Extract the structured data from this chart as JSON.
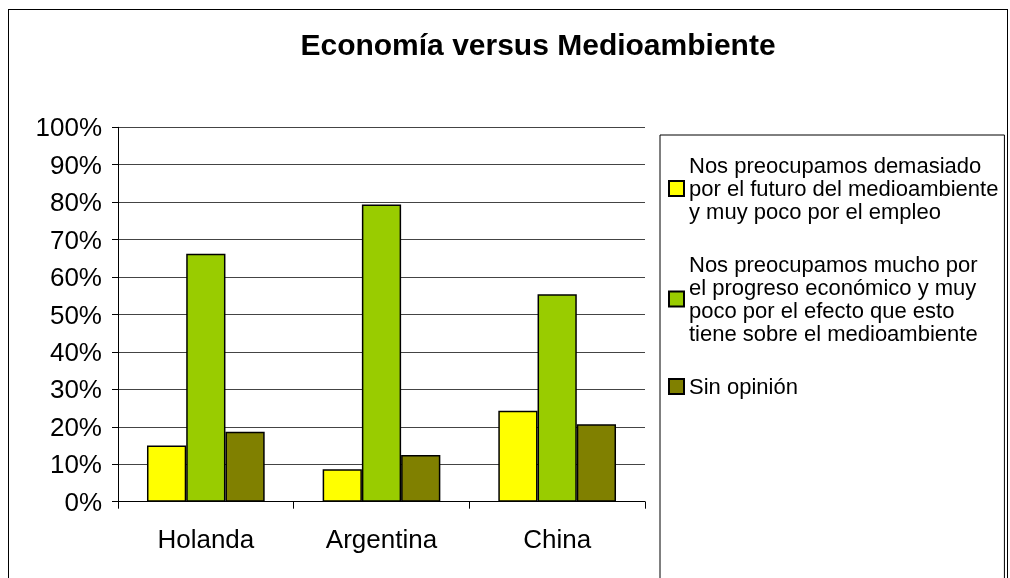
{
  "chart_data": {
    "type": "bar",
    "title": "Economía versus Medioambiente",
    "categories": [
      "Holanda",
      "Argentina",
      "China"
    ],
    "series": [
      {
        "name": "Nos preocupamos demasiado por el futuro del medioambiente y muy poco por el empleo",
        "color": "#ffff00",
        "values": [
          15.0,
          8.7,
          24.3
        ]
      },
      {
        "name": "Nos preocupamos mucho por el progreso económico y muy poco por el efecto que esto tiene sobre el medioambiente",
        "color": "#99cc00",
        "values": [
          66.2,
          79.4,
          55.4
        ]
      },
      {
        "name": "Sin opinión",
        "color": "#808000",
        "values": [
          18.7,
          12.5,
          20.7
        ]
      }
    ],
    "ylim": [
      0,
      100
    ],
    "yticks": [
      {
        "value": 0,
        "label": "0%"
      },
      {
        "value": 10,
        "label": "10%"
      },
      {
        "value": 20,
        "label": "20%"
      },
      {
        "value": 30,
        "label": "30%"
      },
      {
        "value": 40,
        "label": "40%"
      },
      {
        "value": 50,
        "label": "50%"
      },
      {
        "value": 60,
        "label": "60%"
      },
      {
        "value": 70,
        "label": "70%"
      },
      {
        "value": 80,
        "label": "80%"
      },
      {
        "value": 90,
        "label": "90%"
      },
      {
        "value": 100,
        "label": "100%"
      }
    ],
    "grid": "y",
    "legend": "right"
  }
}
